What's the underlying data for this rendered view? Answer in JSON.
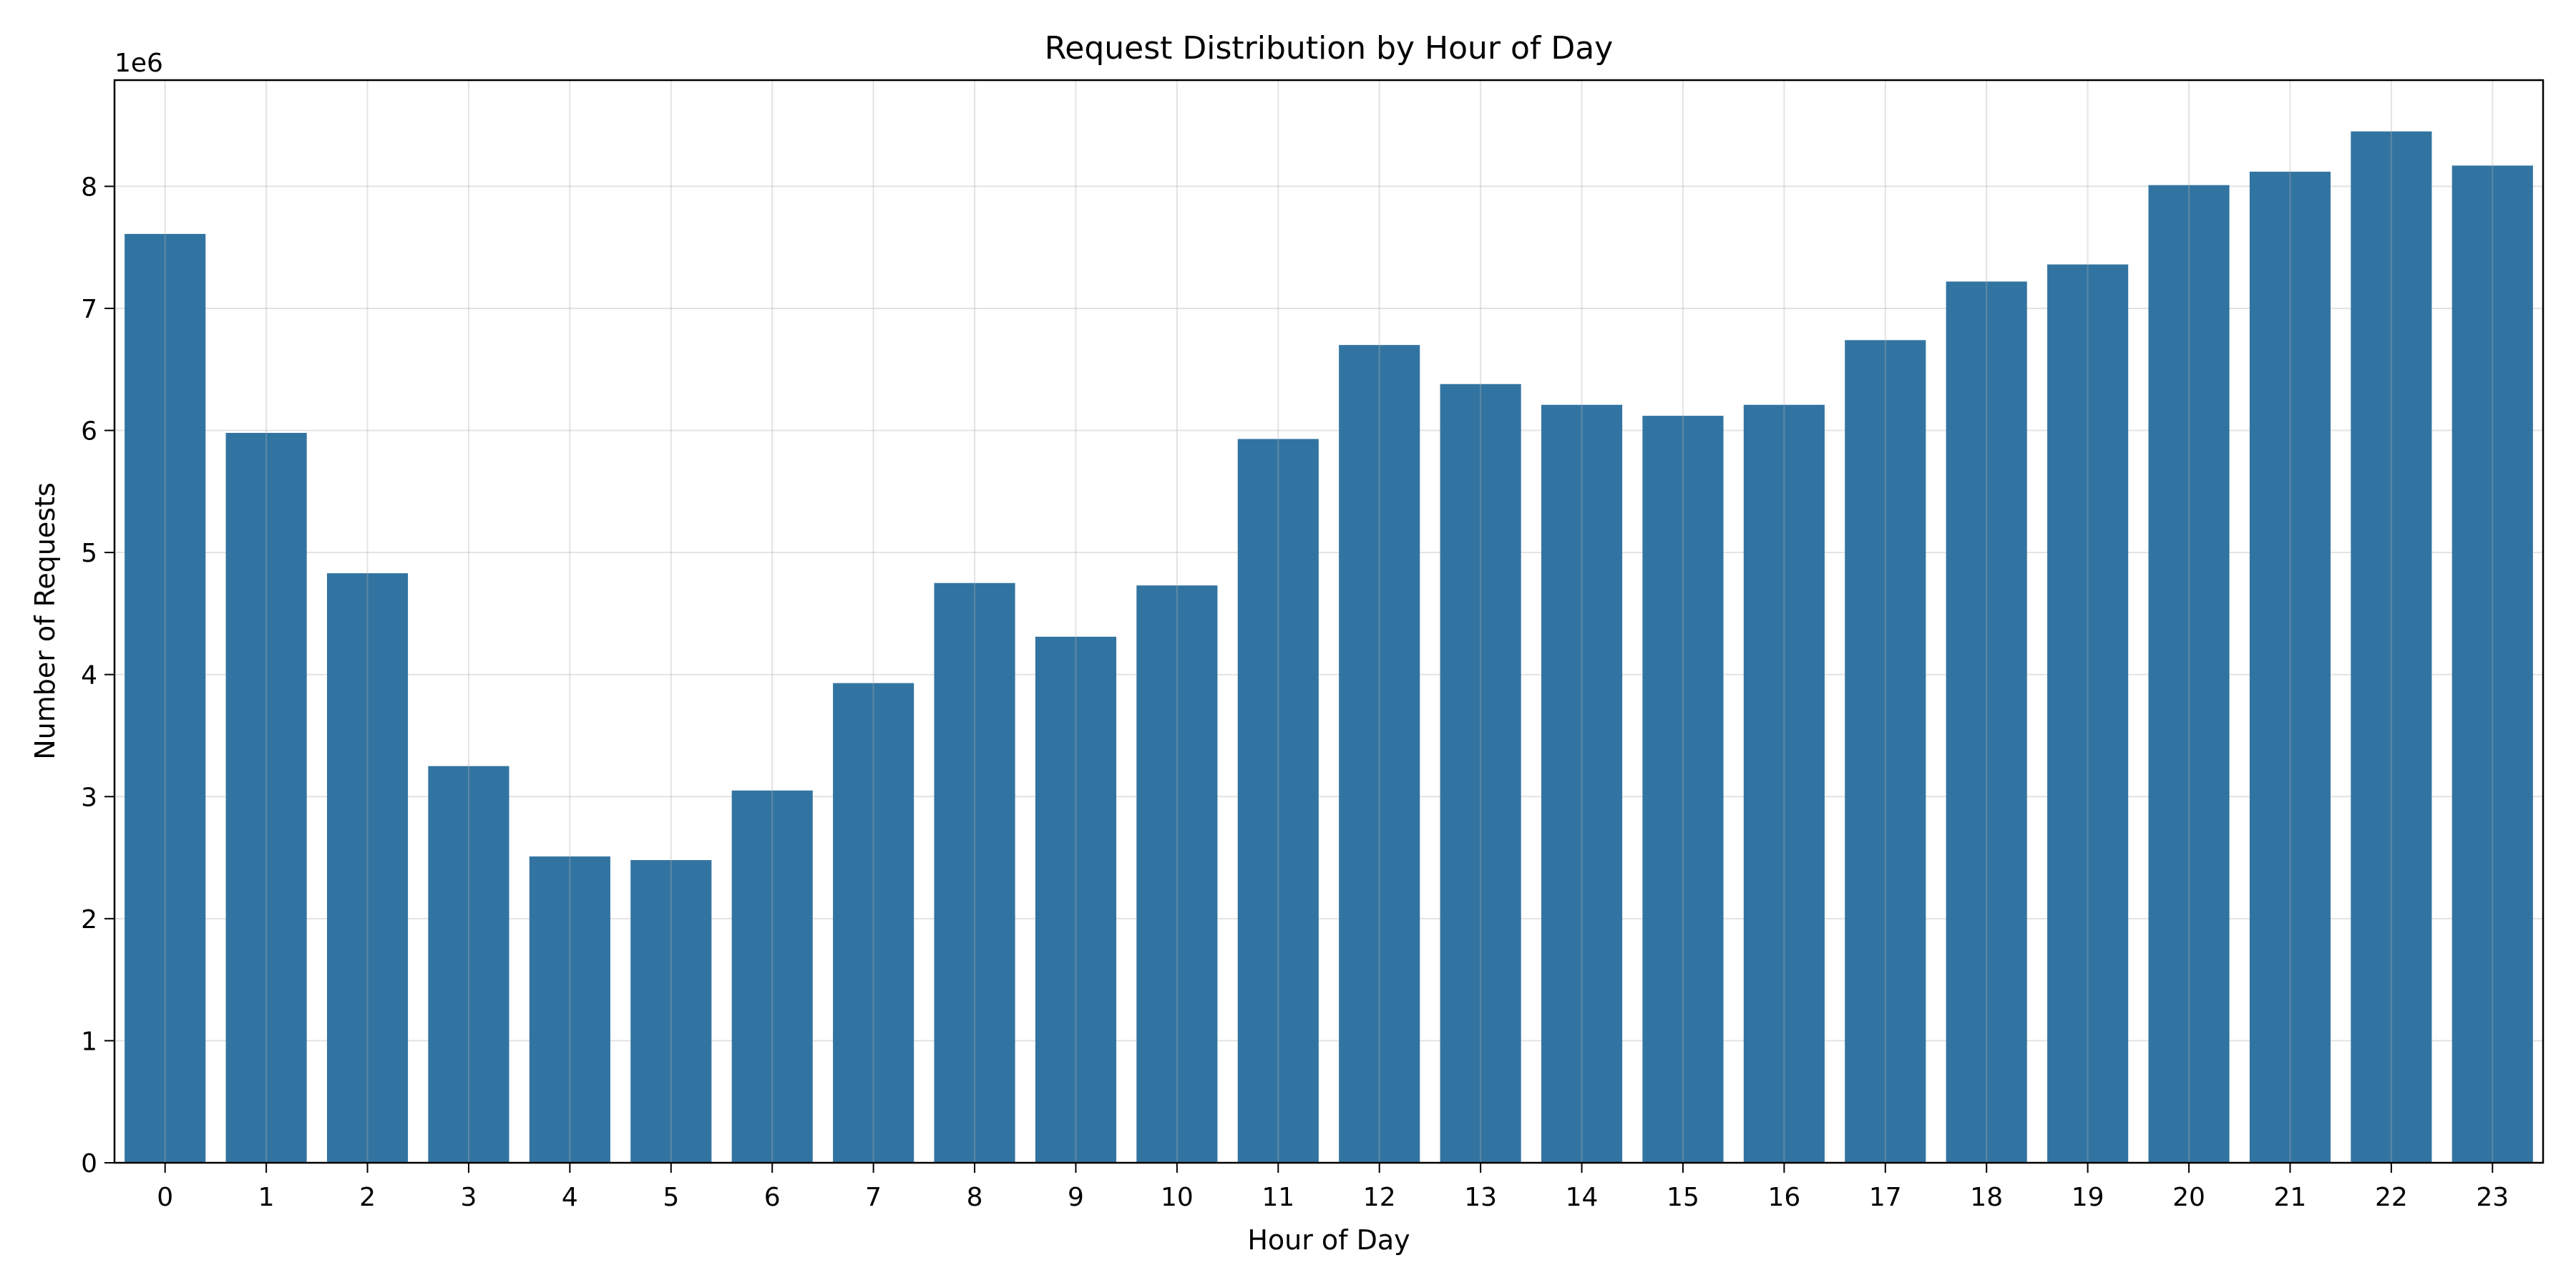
{
  "chart_data": {
    "type": "bar",
    "title": "Request Distribution by Hour of Day",
    "xlabel": "Hour of Day",
    "ylabel": "Number of Requests",
    "y_offset_label": "1e6",
    "categories": [
      "0",
      "1",
      "2",
      "3",
      "4",
      "5",
      "6",
      "7",
      "8",
      "9",
      "10",
      "11",
      "12",
      "13",
      "14",
      "15",
      "16",
      "17",
      "18",
      "19",
      "20",
      "21",
      "22",
      "23"
    ],
    "values": [
      7610000,
      5980000,
      4830000,
      3250000,
      2510000,
      2480000,
      3050000,
      3930000,
      4750000,
      4310000,
      4730000,
      5930000,
      6700000,
      6380000,
      6210000,
      6120000,
      6210000,
      6740000,
      7220000,
      7360000,
      8010000,
      8120000,
      8450000,
      8170000
    ],
    "ylim": [
      0,
      8870000
    ],
    "yticks": [
      0,
      1000000,
      2000000,
      3000000,
      4000000,
      5000000,
      6000000,
      7000000,
      8000000
    ],
    "ytick_labels": [
      "0",
      "1",
      "2",
      "3",
      "4",
      "5",
      "6",
      "7",
      "8"
    ],
    "grid": true,
    "colors": {
      "bar": "#3274a1",
      "grid": "#b0b0b0",
      "axis": "#000000"
    }
  }
}
